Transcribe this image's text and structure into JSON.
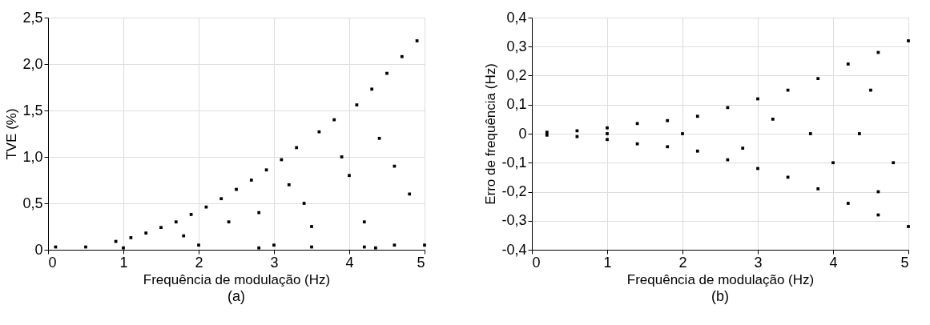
{
  "chart_data": [
    {
      "type": "scatter",
      "xlabel": "Frequência de modulação (Hz)",
      "ylabel": "TVE (%)",
      "annotations": [
        "(a)"
      ],
      "marker": "square",
      "grid": true,
      "legend": false,
      "xlim": [
        0,
        5
      ],
      "xticks": [
        0,
        1,
        2,
        3,
        4,
        5
      ],
      "ylim": [
        0,
        2.5
      ],
      "yticks": [
        0,
        {
          "value": 0.5,
          "label": "0,5"
        },
        {
          "value": 1.0,
          "label": "1,0"
        },
        {
          "value": 1.5,
          "label": "1,5"
        },
        {
          "value": 2.0,
          "label": "2,0"
        },
        {
          "value": 2.5,
          "label": "2,5"
        }
      ],
      "series": [
        {
          "color": "#000000",
          "x": [
            0.1,
            0.5,
            0.9,
            1.1,
            1.3,
            1.5,
            1.7,
            1.9,
            2.1,
            2.3,
            2.5,
            2.7,
            2.9,
            3.1,
            3.3,
            3.6,
            3.8,
            4.1,
            4.3,
            4.5,
            4.7,
            4.9,
            1.0,
            2.0,
            2.8,
            3.0,
            3.5,
            4.2,
            4.35,
            4.6,
            5.0,
            2.8,
            3.4,
            3.5,
            4.0,
            4.2,
            4.4,
            4.6,
            4.8,
            3.2,
            3.9,
            1.8,
            2.4
          ],
          "values": [
            0.03,
            0.03,
            0.09,
            0.13,
            0.18,
            0.24,
            0.3,
            0.38,
            0.46,
            0.55,
            0.65,
            0.75,
            0.86,
            0.97,
            1.1,
            1.27,
            1.4,
            1.56,
            1.73,
            1.9,
            2.08,
            2.25,
            0.02,
            0.05,
            0.02,
            0.05,
            0.03,
            0.03,
            0.02,
            0.05,
            0.05,
            0.4,
            0.5,
            0.25,
            0.8,
            0.3,
            1.2,
            0.9,
            0.6,
            0.7,
            1.0,
            0.15,
            0.3
          ]
        }
      ]
    },
    {
      "type": "scatter",
      "xlabel": "Frequência de modulação (Hz)",
      "ylabel": "Erro de frequência (Hz)",
      "annotations": [
        "(b)"
      ],
      "marker": "square",
      "grid": true,
      "legend": false,
      "xlim": [
        0,
        5
      ],
      "xticks": [
        0,
        1,
        2,
        3,
        4,
        5
      ],
      "ylim": [
        -0.4,
        0.4
      ],
      "yticks": [
        {
          "value": -0.4,
          "label": "-0,4"
        },
        {
          "value": -0.3,
          "label": "-0,3"
        },
        {
          "value": -0.2,
          "label": "-0,2"
        },
        {
          "value": -0.1,
          "label": "-0,1"
        },
        0,
        {
          "value": 0.1,
          "label": "0,1"
        },
        {
          "value": 0.2,
          "label": "0,2"
        },
        {
          "value": 0.3,
          "label": "0,3"
        },
        {
          "value": 0.4,
          "label": "0,4"
        }
      ],
      "series": [
        {
          "color": "#000000",
          "x": [
            0.2,
            0.6,
            1.0,
            1.4,
            1.8,
            2.2,
            2.6,
            3.0,
            3.4,
            3.8,
            4.2,
            4.6,
            5.0,
            0.2,
            0.6,
            1.0,
            1.4,
            1.8,
            2.2,
            2.6,
            3.0,
            3.4,
            3.8,
            4.2,
            4.6,
            5.0,
            3.7,
            4.35,
            4.5,
            4.8,
            3.2,
            2.8,
            4.0,
            4.6,
            1.0,
            2.0
          ],
          "values": [
            0.005,
            0.01,
            0.02,
            0.035,
            0.045,
            0.06,
            0.09,
            0.12,
            0.15,
            0.19,
            0.24,
            0.28,
            0.32,
            -0.005,
            -0.01,
            -0.02,
            -0.035,
            -0.045,
            -0.06,
            -0.09,
            -0.12,
            -0.15,
            -0.19,
            -0.24,
            -0.28,
            -0.32,
            0,
            0,
            0.15,
            -0.1,
            0.05,
            -0.05,
            -0.1,
            -0.2,
            0,
            0
          ]
        }
      ]
    }
  ]
}
